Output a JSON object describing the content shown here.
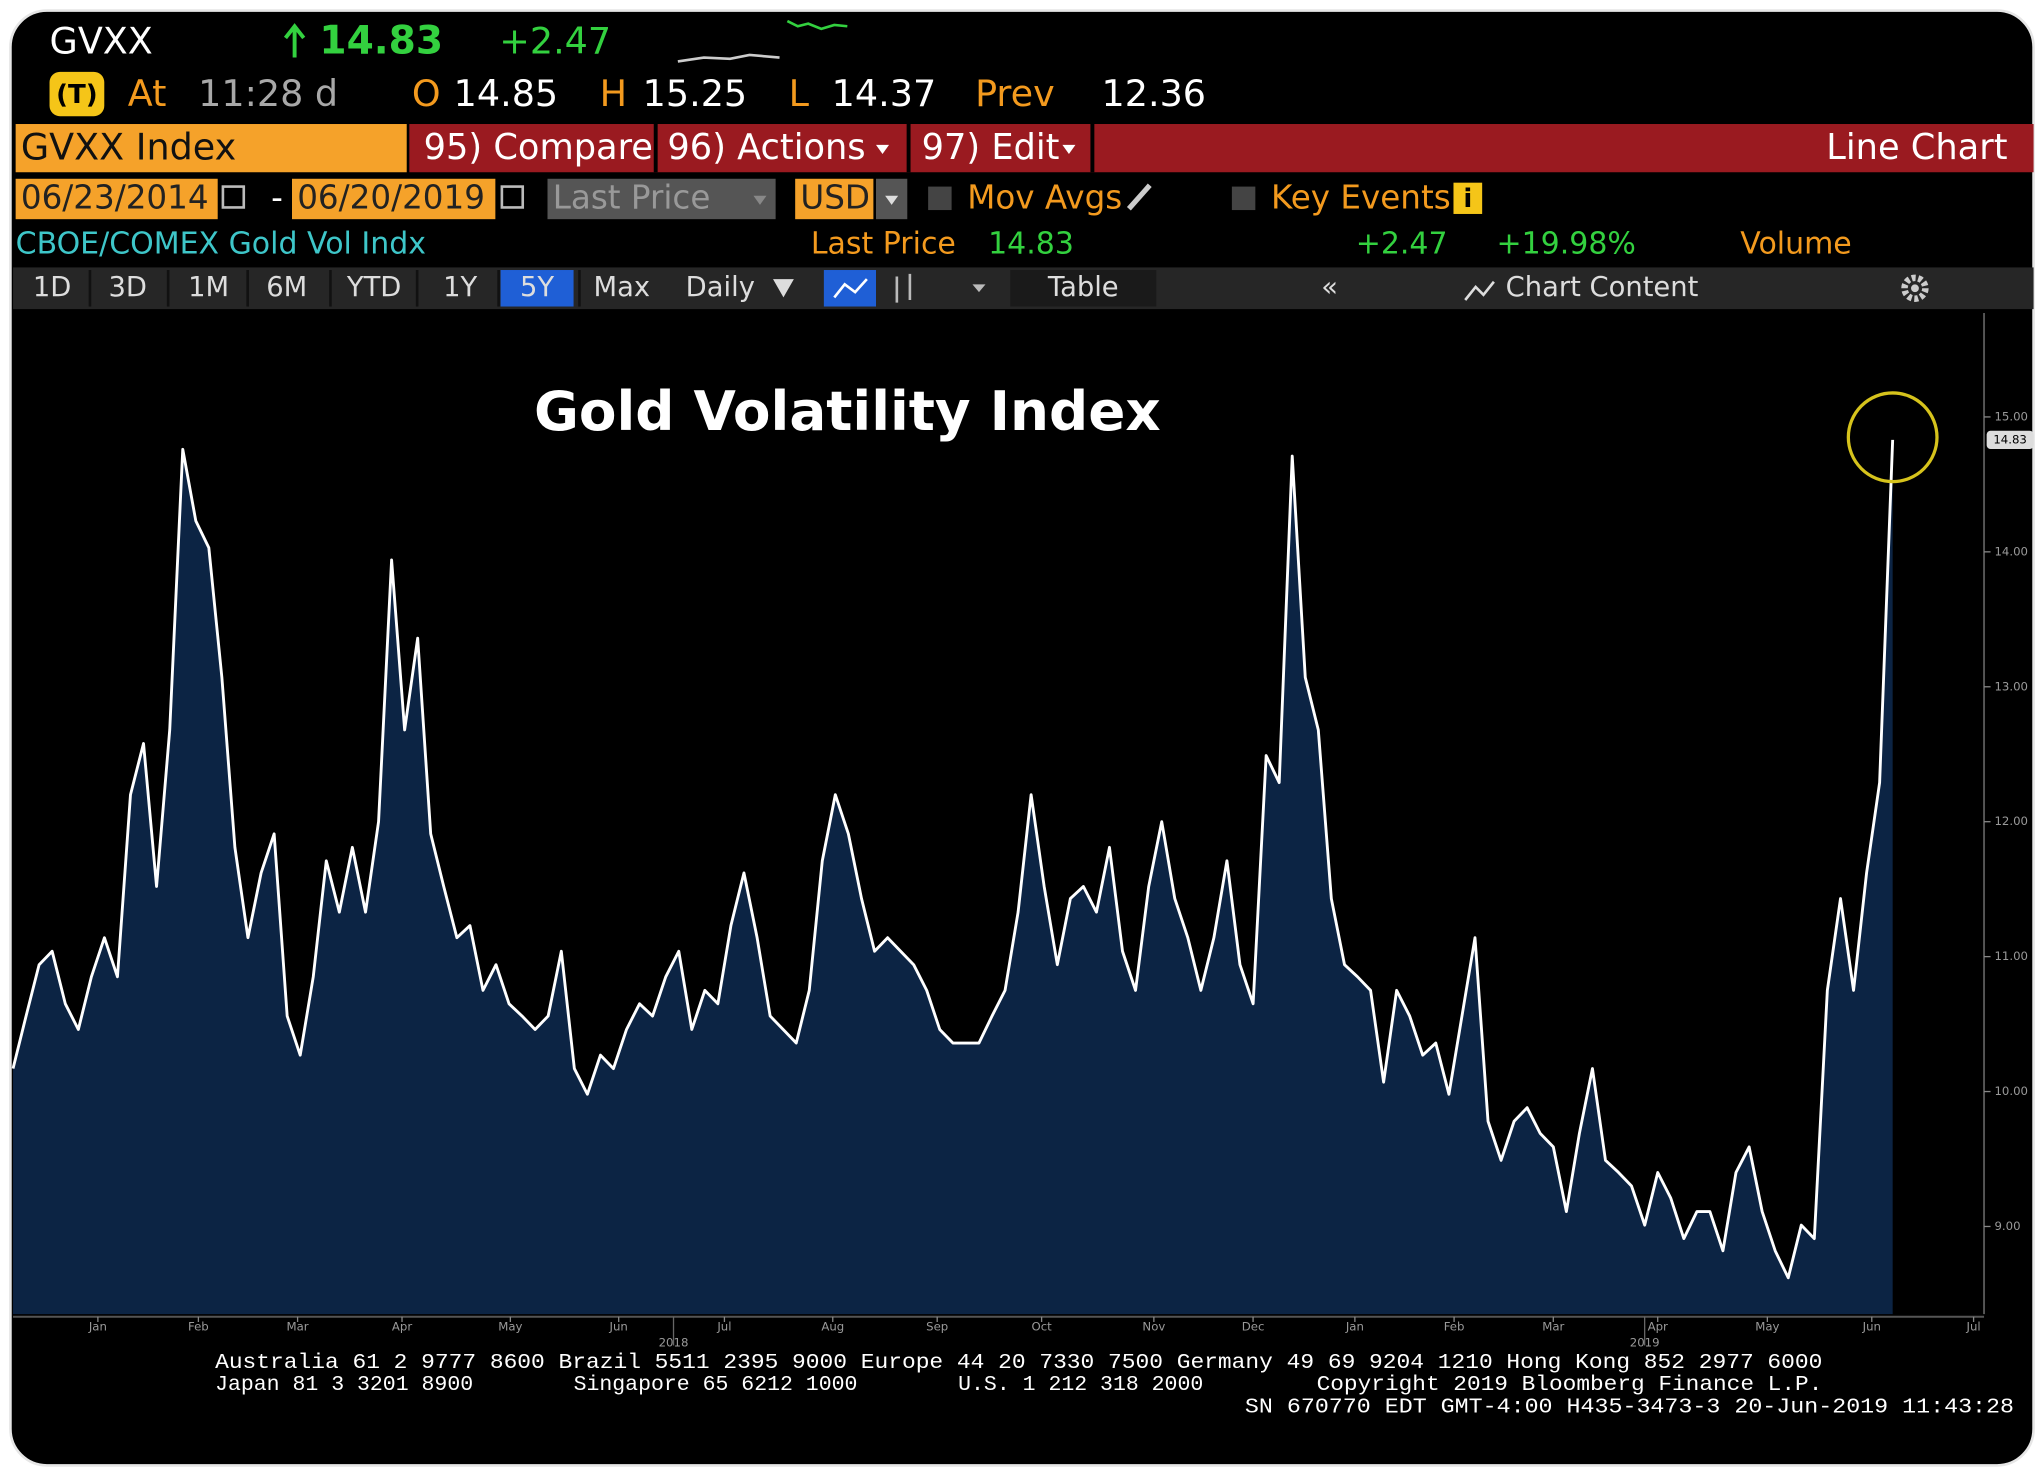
{
  "header": {
    "ticker": "GVXX",
    "last": "14.83",
    "change": "+2.47",
    "quote": {
      "at_label": "At",
      "time": "11:28 d",
      "open_label": "O",
      "open": "14.85",
      "high_label": "H",
      "high": "15.25",
      "low_label": "L",
      "low": "14.37",
      "prev_label": "Prev",
      "prev": "12.36"
    }
  },
  "toolbar": {
    "security": "GVXX Index",
    "compare": "95) Compare",
    "actions": "96) Actions",
    "edit": "97) Edit",
    "chart_type": "Line Chart"
  },
  "controls": {
    "start_date": "06/23/2014",
    "dash": "-",
    "end_date": "06/20/2019",
    "field": "Last Price",
    "currency": "USD",
    "mov_avgs": "Mov Avgs",
    "key_events": "Key Events",
    "key_events_icon": "i"
  },
  "legend_row": {
    "name": "CBOE/COMEX Gold Vol Indx",
    "last_label": "Last Price",
    "last": "14.83",
    "change": "+2.47",
    "pct": "+19.98%",
    "volume": "Volume"
  },
  "periods": [
    "1D",
    "3D",
    "1M",
    "6M",
    "YTD",
    "1Y",
    "5Y",
    "Max"
  ],
  "selected_period": 6,
  "frequency": "Daily",
  "table": "Table",
  "chart_content": "Chart Content",
  "collapse": "«",
  "chart_data": {
    "type": "line",
    "title": "Gold Volatility Index",
    "color": "#ffffff",
    "fill": "#0c2444",
    "marker_color": "#d6c31c",
    "values": [
      10.17,
      10.56,
      10.94,
      11.04,
      10.65,
      10.46,
      10.85,
      11.14,
      10.85,
      12.2,
      12.58,
      11.52,
      12.68,
      14.76,
      14.23,
      14.03,
      13.07,
      11.81,
      11.14,
      11.62,
      11.91,
      10.56,
      10.27,
      10.85,
      11.71,
      11.33,
      11.81,
      11.33,
      12.0,
      13.94,
      12.68,
      13.36,
      11.91,
      11.52,
      11.14,
      11.23,
      10.75,
      10.94,
      10.65,
      10.56,
      10.46,
      10.56,
      11.04,
      10.17,
      9.98,
      10.27,
      10.17,
      10.46,
      10.65,
      10.56,
      10.85,
      11.04,
      10.46,
      10.75,
      10.65,
      11.23,
      11.62,
      11.14,
      10.56,
      10.46,
      10.36,
      10.75,
      11.71,
      12.2,
      11.91,
      11.43,
      11.04,
      11.14,
      11.04,
      10.94,
      10.75,
      10.46,
      10.36,
      10.36,
      10.36,
      10.56,
      10.75,
      11.33,
      12.2,
      11.52,
      10.94,
      11.43,
      11.52,
      11.33,
      11.81,
      11.04,
      10.75,
      11.52,
      12.0,
      11.43,
      11.14,
      10.75,
      11.14,
      11.71,
      10.94,
      10.65,
      12.49,
      12.29,
      14.71,
      13.07,
      12.68,
      11.43,
      10.94,
      10.85,
      10.75,
      10.07,
      10.75,
      10.56,
      10.27,
      10.36,
      9.98,
      10.56,
      11.14,
      9.78,
      9.49,
      9.78,
      9.88,
      9.69,
      9.59,
      9.11,
      9.69,
      10.17,
      9.49,
      9.4,
      9.3,
      9.01,
      9.4,
      9.21,
      8.91,
      9.11,
      9.11,
      8.82,
      9.4,
      9.59,
      9.11,
      8.82,
      8.62,
      9.01,
      8.91,
      10.75,
      11.43,
      10.75,
      11.62,
      12.29,
      14.83
    ],
    "ylim": [
      8.35,
      15.77
    ],
    "yticks": [
      {
        "value": 9,
        "label": "9.00"
      },
      {
        "value": 10,
        "label": "10.00"
      },
      {
        "value": 11,
        "label": "11.00"
      },
      {
        "value": 12,
        "label": "12.00"
      },
      {
        "value": 13,
        "label": "13.00"
      },
      {
        "value": 14,
        "label": "14.00"
      },
      {
        "value": 15,
        "label": "15.00"
      }
    ],
    "xlim": [
      0,
      151
    ],
    "xticks": [
      {
        "value": 6.5,
        "label": "Jan"
      },
      {
        "value": 14.2,
        "label": "Feb"
      },
      {
        "value": 21.8,
        "label": "Mar"
      },
      {
        "value": 29.8,
        "label": "Apr"
      },
      {
        "value": 38.1,
        "label": "May"
      },
      {
        "value": 46.4,
        "label": "Jun"
      },
      {
        "value": 54.5,
        "label": "Jul"
      },
      {
        "value": 62.8,
        "label": "Aug"
      },
      {
        "value": 70.8,
        "label": "Sep"
      },
      {
        "value": 78.8,
        "label": "Oct"
      },
      {
        "value": 87.4,
        "label": "Nov"
      },
      {
        "value": 95,
        "label": "Dec"
      },
      {
        "value": 102.8,
        "label": "Jan"
      },
      {
        "value": 110.4,
        "label": "Feb"
      },
      {
        "value": 118,
        "label": "Mar"
      },
      {
        "value": 126,
        "label": "Apr"
      },
      {
        "value": 134.4,
        "label": "May"
      },
      {
        "value": 142.4,
        "label": "Jun"
      },
      {
        "value": 150.2,
        "label": "Jul"
      }
    ],
    "year_labels": [
      {
        "value": 50.6,
        "label": "2018"
      },
      {
        "value": 125,
        "label": "2019"
      }
    ]
  },
  "footer": [
    [
      "Australia 61 2 9777 8600 Brazil 5511 2395 9000 Europe 44 20 7330 7500 Germany 49 69 9204 1210 Hong Kong 852 2977 6000"
    ],
    [
      "Japan 81 3 3201 8900",
      "Singapore 65 6212 1000",
      "U.S. 1 212 318 2000",
      "Copyright 2019 Bloomberg Finance L.P."
    ],
    [
      "SN 670770 EDT  GMT-4:00 H435-3473-3 20-Jun-2019 11:43:28"
    ]
  ]
}
